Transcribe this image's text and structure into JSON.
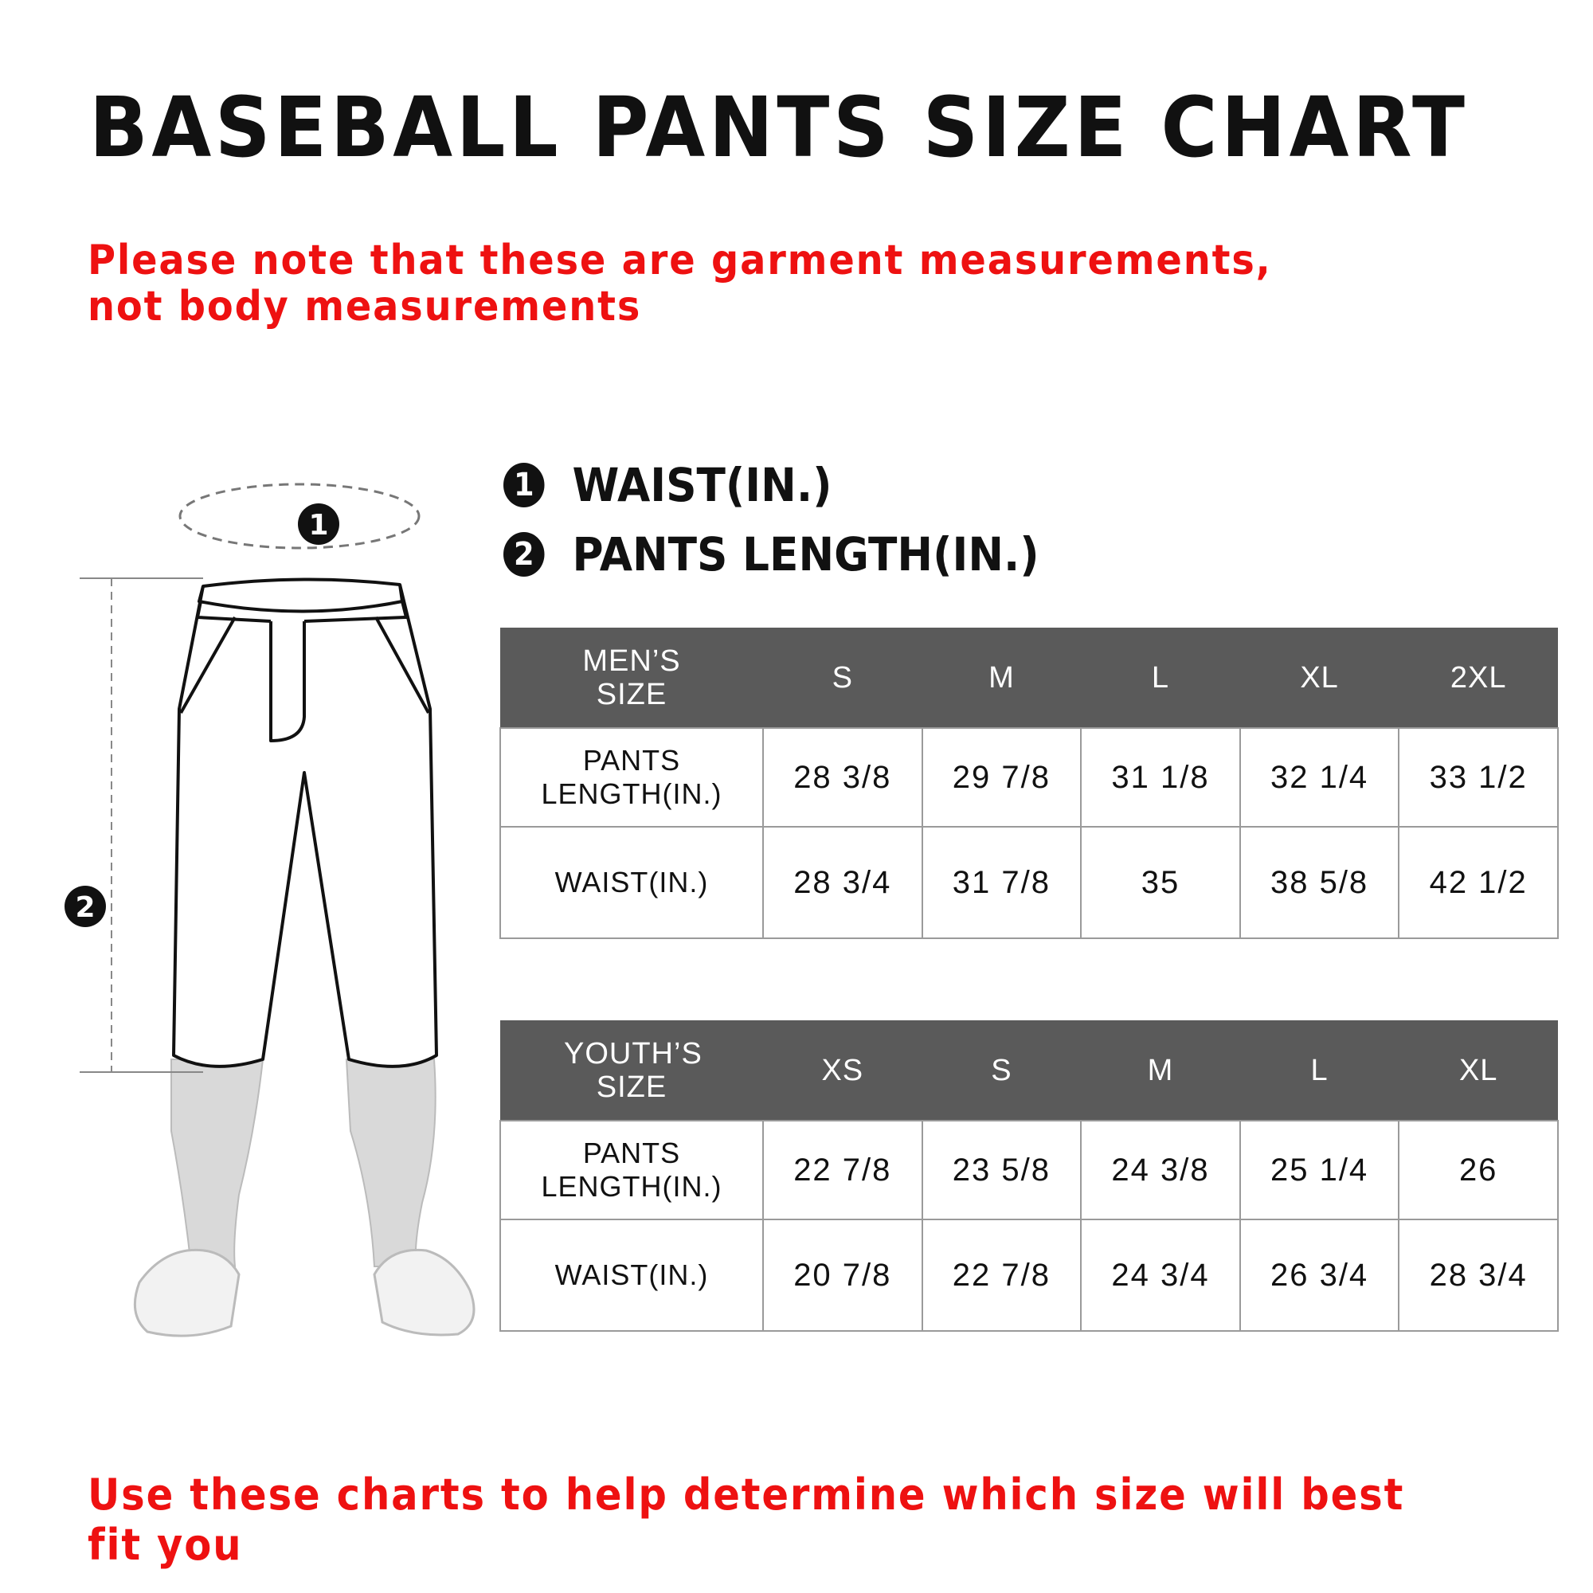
{
  "title": "BASEBALL PANTS SIZE CHART",
  "note": "Please note that these are garment measurements, not body measurements",
  "legend": [
    {
      "num": "1",
      "label": "WAIST(IN.)"
    },
    {
      "num": "2",
      "label": "PANTS LENGTH(IN.)"
    }
  ],
  "mens": {
    "header": [
      "MEN’S SIZE",
      "S",
      "M",
      "L",
      "XL",
      "2XL"
    ],
    "rows": [
      {
        "label": "PANTS LENGTH(IN.)",
        "values": [
          "28 3/8",
          "29 7/8",
          "31 1/8",
          "32 1/4",
          "33 1/2"
        ]
      },
      {
        "label": "WAIST(IN.)",
        "values": [
          "28 3/4",
          "31 7/8",
          "35",
          "38 5/8",
          "42 1/2"
        ]
      }
    ]
  },
  "youth": {
    "header": [
      "YOUTH’S SIZE",
      "XS",
      "S",
      "M",
      "L",
      "XL"
    ],
    "rows": [
      {
        "label": "PANTS LENGTH(IN.)",
        "values": [
          "22 7/8",
          "23 5/8",
          "24 3/8",
          "25 1/4",
          "26"
        ]
      },
      {
        "label": "WAIST(IN.)",
        "values": [
          "20 7/8",
          "22 7/8",
          "24 3/4",
          "26 3/4",
          "28 3/4"
        ]
      }
    ]
  },
  "illustration": {
    "marker1": "1",
    "marker2": "2"
  },
  "footer": "Use these charts to help determine which size will best fit you",
  "colors": {
    "accent": "#ee1111",
    "header_bg": "#5a5a5a"
  }
}
